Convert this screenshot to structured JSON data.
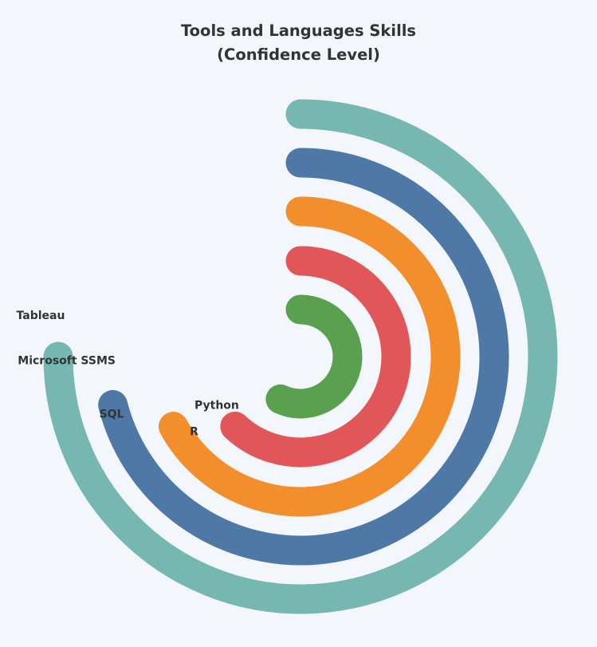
{
  "title_line1": "Tools and Languages Skills",
  "title_line2": "(Confidence Level)",
  "chart_data": {
    "type": "radial-bar",
    "title": "Tools and Languages Skills (Confidence Level)",
    "max_value": 100,
    "categories": [
      "Python",
      "R",
      "SQL",
      "Microsoft SSMS",
      "Tableau"
    ],
    "values": [
      57,
      62,
      67,
      71,
      75
    ],
    "colors": [
      "#59a14f",
      "#e15759",
      "#f28e2b",
      "#4e79a7",
      "#76b7b2"
    ],
    "background": "#f3f6fa"
  }
}
